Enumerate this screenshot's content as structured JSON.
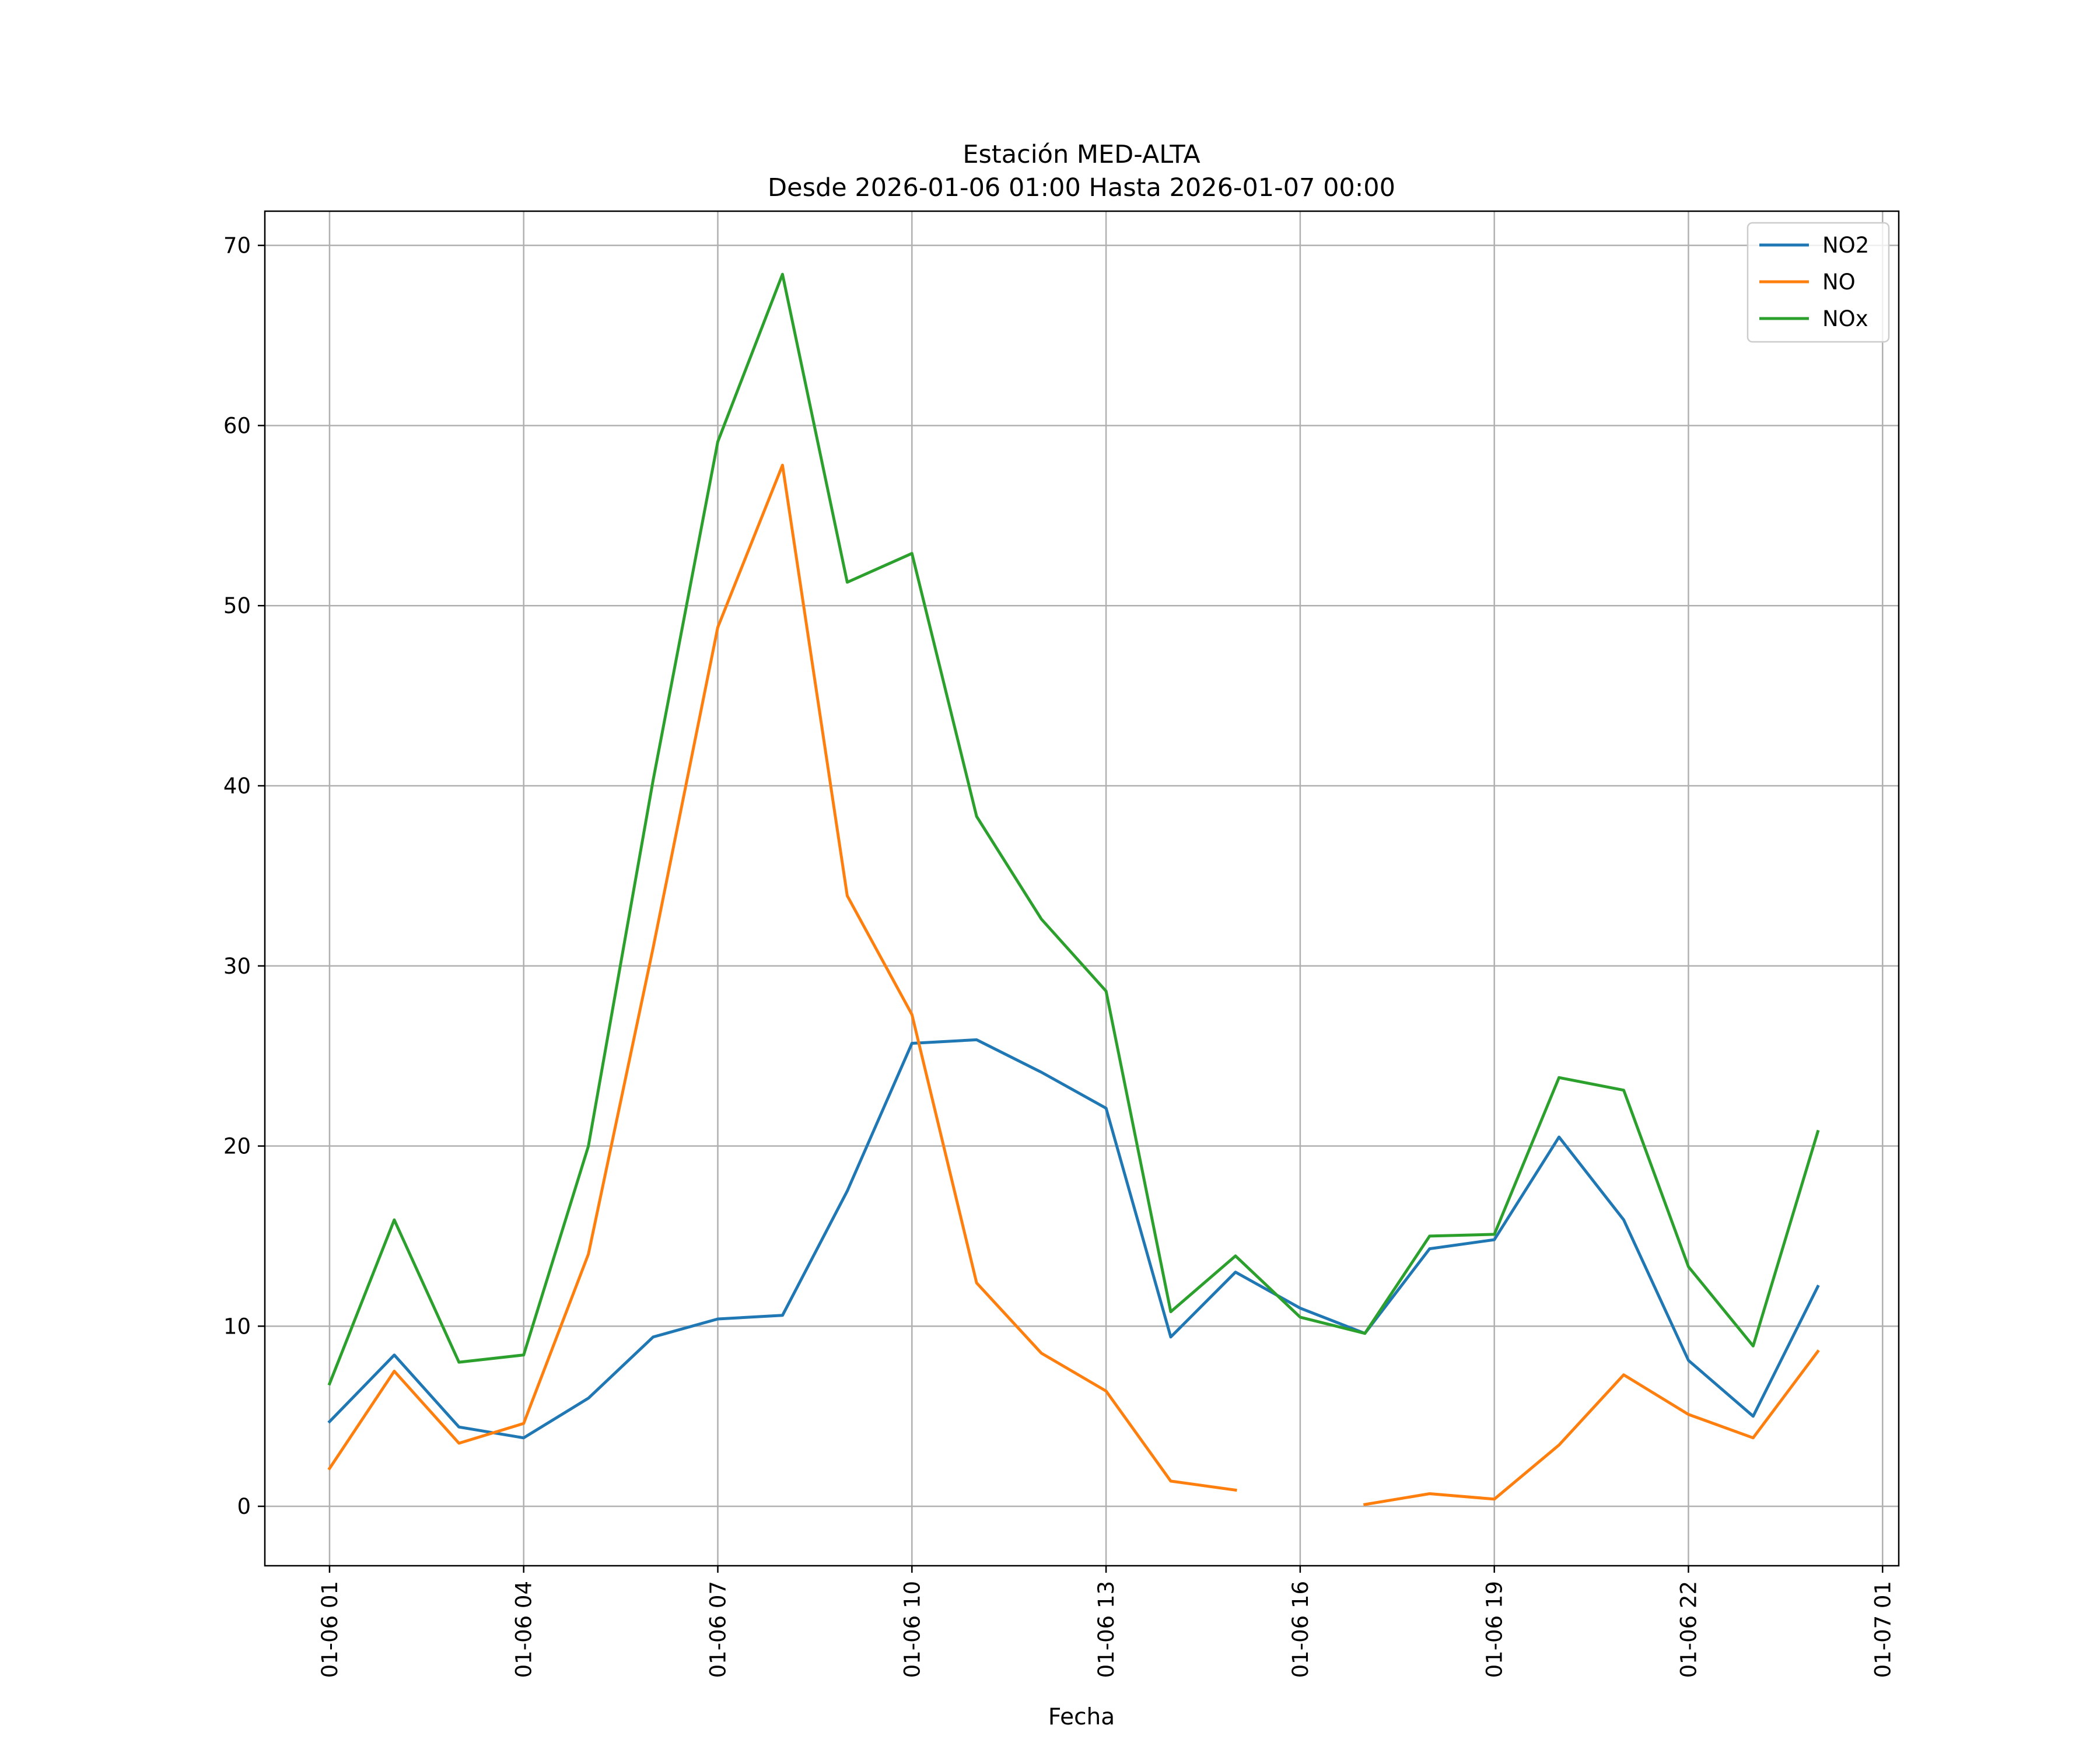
{
  "chart_data": {
    "type": "line",
    "title": "Estación MED-ALTA",
    "subtitle": "Desde 2026-01-06 01:00 Hasta 2026-01-07 00:00",
    "xlabel": "Fecha",
    "ylabel": "",
    "x": [
      "01-06 01:00",
      "01-06 02:00",
      "01-06 03:00",
      "01-06 04:00",
      "01-06 05:00",
      "01-06 06:00",
      "01-06 07:00",
      "01-06 08:00",
      "01-06 09:00",
      "01-06 10:00",
      "01-06 11:00",
      "01-06 12:00",
      "01-06 13:00",
      "01-06 14:00",
      "01-06 15:00",
      "01-06 16:00",
      "01-06 17:00",
      "01-06 18:00",
      "01-06 19:00",
      "01-06 20:00",
      "01-06 21:00",
      "01-06 22:00",
      "01-06 23:00",
      "01-07 00:00"
    ],
    "xlim": [
      "01-06 00:00",
      "01-07 01:15"
    ],
    "x_ticks": [
      "01-06 01",
      "01-06 04",
      "01-06 07",
      "01-06 10",
      "01-06 13",
      "01-06 16",
      "01-06 19",
      "01-06 22",
      "01-07 01"
    ],
    "ylim": [
      -3.3,
      71.9
    ],
    "y_ticks": [
      "0",
      "10",
      "20",
      "30",
      "40",
      "50",
      "60",
      "70"
    ],
    "grid": true,
    "legend_position": "top-right",
    "series": [
      {
        "name": "NO2",
        "color": "#1f77b4",
        "values": [
          4.7,
          8.4,
          4.4,
          3.8,
          6.0,
          9.4,
          10.4,
          10.6,
          17.5,
          25.7,
          25.9,
          24.1,
          22.1,
          9.4,
          13.0,
          11.0,
          9.6,
          14.3,
          14.8,
          20.5,
          15.9,
          8.1,
          5.0,
          12.2
        ]
      },
      {
        "name": "NO",
        "color": "#ff7f0e",
        "values": [
          2.1,
          7.5,
          3.5,
          4.6,
          14.0,
          31.0,
          48.8,
          57.8,
          33.9,
          27.3,
          12.4,
          8.5,
          6.4,
          1.4,
          0.9,
          null,
          0.1,
          0.7,
          0.4,
          3.4,
          7.3,
          5.1,
          3.8,
          8.6
        ]
      },
      {
        "name": "NOx",
        "color": "#2ca02c",
        "values": [
          6.8,
          15.9,
          8.0,
          8.4,
          20.0,
          40.3,
          59.1,
          68.4,
          51.3,
          52.9,
          38.3,
          32.6,
          28.6,
          10.8,
          13.9,
          10.5,
          9.6,
          15.0,
          15.1,
          23.8,
          23.1,
          13.3,
          8.9,
          20.8
        ]
      }
    ]
  }
}
